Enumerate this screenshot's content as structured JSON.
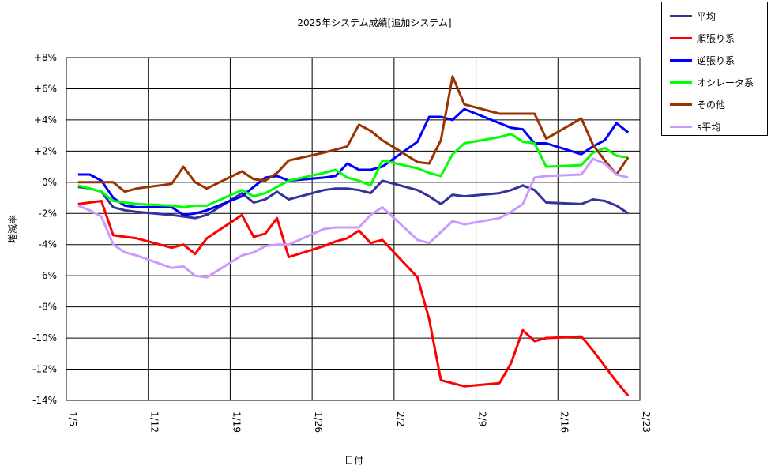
{
  "chart_data": {
    "type": "line",
    "title": "2025年システム成績[追加システム]",
    "xlabel": "日付",
    "ylabel": "増減率",
    "x_tick_labels": [
      "1/5",
      "1/12",
      "1/19",
      "1/26",
      "2/2",
      "2/9",
      "2/16",
      "2/23"
    ],
    "y_tick_labels": [
      "+8%",
      "+6%",
      "+4%",
      "+2%",
      "0%",
      "-2%",
      "-4%",
      "-6%",
      "-8%",
      "-10%",
      "-12%",
      "-14%"
    ],
    "ylim": [
      -14,
      8
    ],
    "xlim_days_label": [
      "1/5",
      "2/23"
    ],
    "grid": true,
    "legend_position": "top-right, outside plot",
    "series": [
      {
        "name": "平均",
        "color": "#333399",
        "points": [
          [
            1,
            -0.3
          ],
          [
            2,
            -0.4
          ],
          [
            3,
            -0.6
          ],
          [
            4,
            -1.6
          ],
          [
            5,
            -1.8
          ],
          [
            6,
            -1.9
          ],
          [
            9,
            -2.1
          ],
          [
            10,
            -2.2
          ],
          [
            11,
            -2.3
          ],
          [
            12,
            -2.1
          ],
          [
            15,
            -0.7
          ],
          [
            16,
            -1.3
          ],
          [
            17,
            -1.1
          ],
          [
            18,
            -0.6
          ],
          [
            19,
            -1.1
          ],
          [
            22,
            -0.5
          ],
          [
            23,
            -0.4
          ],
          [
            24,
            -0.4
          ],
          [
            25,
            -0.5
          ],
          [
            26,
            -0.7
          ],
          [
            27,
            0.1
          ],
          [
            30,
            -0.5
          ],
          [
            31,
            -0.9
          ],
          [
            32,
            -1.4
          ],
          [
            33,
            -0.8
          ],
          [
            34,
            -0.9
          ],
          [
            37,
            -0.7
          ],
          [
            38,
            -0.5
          ],
          [
            39,
            -0.2
          ],
          [
            40,
            -0.5
          ],
          [
            41,
            -1.3
          ],
          [
            44,
            -1.4
          ],
          [
            45,
            -1.1
          ],
          [
            46,
            -1.2
          ],
          [
            47,
            -1.5
          ],
          [
            48,
            -2.0
          ]
        ]
      },
      {
        "name": "順張り系",
        "color": "#ff0000",
        "points": [
          [
            1,
            -1.4
          ],
          [
            2,
            -1.3
          ],
          [
            3,
            -1.2
          ],
          [
            4,
            -3.4
          ],
          [
            5,
            -3.5
          ],
          [
            6,
            -3.6
          ],
          [
            9,
            -4.2
          ],
          [
            10,
            -4.0
          ],
          [
            11,
            -4.6
          ],
          [
            12,
            -3.6
          ],
          [
            15,
            -2.1
          ],
          [
            16,
            -3.5
          ],
          [
            17,
            -3.3
          ],
          [
            18,
            -2.3
          ],
          [
            19,
            -4.8
          ],
          [
            22,
            -4.1
          ],
          [
            23,
            -3.8
          ],
          [
            24,
            -3.6
          ],
          [
            25,
            -3.1
          ],
          [
            26,
            -3.9
          ],
          [
            27,
            -3.7
          ],
          [
            30,
            -6.1
          ],
          [
            31,
            -8.8
          ],
          [
            32,
            -12.7
          ],
          [
            33,
            -12.9
          ],
          [
            34,
            -13.1
          ],
          [
            37,
            -12.9
          ],
          [
            38,
            -11.6
          ],
          [
            39,
            -9.5
          ],
          [
            40,
            -10.2
          ],
          [
            41,
            -10.0
          ],
          [
            44,
            -9.9
          ],
          [
            45,
            -10.8
          ],
          [
            46,
            -11.8
          ],
          [
            47,
            -12.8
          ],
          [
            48,
            -13.7
          ]
        ]
      },
      {
        "name": "逆張り系",
        "color": "#0000ff",
        "points": [
          [
            1,
            0.5
          ],
          [
            2,
            0.5
          ],
          [
            3,
            0.1
          ],
          [
            4,
            -1.0
          ],
          [
            5,
            -1.5
          ],
          [
            6,
            -1.6
          ],
          [
            9,
            -1.6
          ],
          [
            10,
            -2.1
          ],
          [
            11,
            -2.0
          ],
          [
            12,
            -1.8
          ],
          [
            15,
            -0.9
          ],
          [
            16,
            -0.3
          ],
          [
            17,
            0.3
          ],
          [
            18,
            0.4
          ],
          [
            19,
            0.1
          ],
          [
            22,
            0.3
          ],
          [
            23,
            0.4
          ],
          [
            24,
            1.2
          ],
          [
            25,
            0.8
          ],
          [
            26,
            0.8
          ],
          [
            27,
            1.0
          ],
          [
            30,
            2.6
          ],
          [
            31,
            4.2
          ],
          [
            32,
            4.2
          ],
          [
            33,
            4.0
          ],
          [
            34,
            4.7
          ],
          [
            37,
            3.8
          ],
          [
            38,
            3.5
          ],
          [
            39,
            3.4
          ],
          [
            40,
            2.5
          ],
          [
            41,
            2.5
          ],
          [
            44,
            1.8
          ],
          [
            45,
            2.3
          ],
          [
            46,
            2.7
          ],
          [
            47,
            3.8
          ],
          [
            48,
            3.2
          ]
        ]
      },
      {
        "name": "オシレータ系",
        "color": "#00ff00",
        "points": [
          [
            1,
            -0.2
          ],
          [
            2,
            -0.4
          ],
          [
            3,
            -0.6
          ],
          [
            4,
            -1.2
          ],
          [
            5,
            -1.3
          ],
          [
            6,
            -1.4
          ],
          [
            9,
            -1.5
          ],
          [
            10,
            -1.6
          ],
          [
            11,
            -1.5
          ],
          [
            12,
            -1.5
          ],
          [
            15,
            -0.5
          ],
          [
            16,
            -0.9
          ],
          [
            17,
            -0.7
          ],
          [
            18,
            -0.3
          ],
          [
            19,
            0.1
          ],
          [
            22,
            0.6
          ],
          [
            23,
            0.8
          ],
          [
            24,
            0.3
          ],
          [
            25,
            0.1
          ],
          [
            26,
            -0.2
          ],
          [
            27,
            1.4
          ],
          [
            30,
            0.9
          ],
          [
            31,
            0.6
          ],
          [
            32,
            0.4
          ],
          [
            33,
            1.8
          ],
          [
            34,
            2.5
          ],
          [
            37,
            2.9
          ],
          [
            38,
            3.1
          ],
          [
            39,
            2.6
          ],
          [
            40,
            2.5
          ],
          [
            41,
            1.0
          ],
          [
            44,
            1.1
          ],
          [
            45,
            1.9
          ],
          [
            46,
            2.2
          ],
          [
            47,
            1.7
          ],
          [
            48,
            1.6
          ]
        ]
      },
      {
        "name": "その他",
        "color": "#993300",
        "points": [
          [
            1,
            0.0
          ],
          [
            2,
            0.0
          ],
          [
            3,
            0.0
          ],
          [
            4,
            0.0
          ],
          [
            5,
            -0.6
          ],
          [
            6,
            -0.4
          ],
          [
            9,
            -0.1
          ],
          [
            10,
            1.0
          ],
          [
            11,
            0.0
          ],
          [
            12,
            -0.4
          ],
          [
            15,
            0.7
          ],
          [
            16,
            0.2
          ],
          [
            17,
            0.1
          ],
          [
            18,
            0.6
          ],
          [
            19,
            1.4
          ],
          [
            22,
            1.9
          ],
          [
            23,
            2.1
          ],
          [
            24,
            2.3
          ],
          [
            25,
            3.7
          ],
          [
            26,
            3.3
          ],
          [
            27,
            2.7
          ],
          [
            30,
            1.3
          ],
          [
            31,
            1.2
          ],
          [
            32,
            2.7
          ],
          [
            33,
            6.8
          ],
          [
            34,
            5.0
          ],
          [
            37,
            4.4
          ],
          [
            38,
            4.4
          ],
          [
            39,
            4.4
          ],
          [
            40,
            4.4
          ],
          [
            41,
            2.8
          ],
          [
            44,
            4.1
          ],
          [
            45,
            2.4
          ],
          [
            46,
            1.4
          ],
          [
            47,
            0.5
          ],
          [
            48,
            1.6
          ]
        ]
      },
      {
        "name": "s平均",
        "color": "#cc99ff",
        "points": [
          [
            1,
            -1.5
          ],
          [
            2,
            -1.8
          ],
          [
            3,
            -2.2
          ],
          [
            4,
            -4.0
          ],
          [
            5,
            -4.5
          ],
          [
            6,
            -4.7
          ],
          [
            9,
            -5.5
          ],
          [
            10,
            -5.4
          ],
          [
            11,
            -6.0
          ],
          [
            12,
            -6.1
          ],
          [
            15,
            -4.7
          ],
          [
            16,
            -4.5
          ],
          [
            17,
            -4.1
          ],
          [
            18,
            -4.0
          ],
          [
            19,
            -4.0
          ],
          [
            22,
            -3.0
          ],
          [
            23,
            -2.9
          ],
          [
            24,
            -2.9
          ],
          [
            25,
            -2.9
          ],
          [
            26,
            -2.1
          ],
          [
            27,
            -1.6
          ],
          [
            30,
            -3.7
          ],
          [
            31,
            -3.9
          ],
          [
            32,
            -3.2
          ],
          [
            33,
            -2.5
          ],
          [
            34,
            -2.7
          ],
          [
            37,
            -2.3
          ],
          [
            38,
            -1.9
          ],
          [
            39,
            -1.4
          ],
          [
            40,
            0.3
          ],
          [
            41,
            0.4
          ],
          [
            44,
            0.5
          ],
          [
            45,
            1.5
          ],
          [
            46,
            1.2
          ],
          [
            47,
            0.5
          ],
          [
            48,
            0.3
          ]
        ]
      }
    ]
  }
}
